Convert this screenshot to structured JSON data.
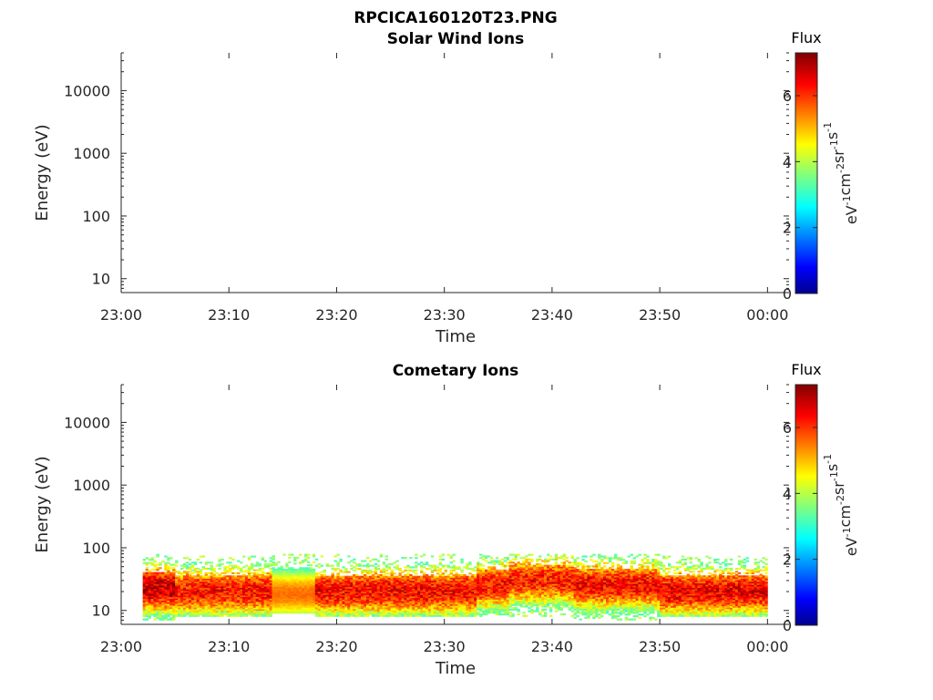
{
  "figure_title": "RPCICA160120T23.PNG",
  "chart_data": [
    {
      "type": "heatmap",
      "title": "Solar Wind Ions",
      "xlabel": "Time",
      "ylabel": "Energy (eV)",
      "x_ticks": [
        "23:00",
        "23:10",
        "23:20",
        "23:30",
        "23:40",
        "23:50",
        "00:00"
      ],
      "xlim": [
        "23:00",
        "00:02"
      ],
      "y_scale": "log",
      "y_ticks": [
        10,
        100,
        1000,
        10000
      ],
      "ylim": [
        6,
        40000
      ],
      "colorbar": {
        "title": "Flux",
        "label": "eV-1cm-2sr-1s-1",
        "ticks": [
          0,
          2,
          4,
          6
        ],
        "range": [
          0,
          7.3
        ],
        "colormap": "jet"
      },
      "populated": false,
      "bands": []
    },
    {
      "type": "heatmap",
      "title": "Cometary Ions",
      "xlabel": "Time",
      "ylabel": "Energy (eV)",
      "x_ticks": [
        "23:00",
        "23:10",
        "23:20",
        "23:30",
        "23:40",
        "23:50",
        "00:00"
      ],
      "xlim": [
        "23:00",
        "00:02"
      ],
      "y_scale": "log",
      "y_ticks": [
        10,
        100,
        1000,
        10000
      ],
      "ylim": [
        6,
        40000
      ],
      "colorbar": {
        "title": "Flux",
        "label": "eV-1cm-2sr-1s-1",
        "ticks": [
          0,
          2,
          4,
          6
        ],
        "range": [
          0,
          7.3
        ],
        "colormap": "jet"
      },
      "populated": true,
      "bands": [
        {
          "t_start": "23:02",
          "t_end": "23:05",
          "e_min": 7,
          "e_max": 80,
          "peak_energy": 22,
          "peak_flux": 6.8
        },
        {
          "t_start": "23:05",
          "t_end": "23:14",
          "e_min": 8,
          "e_max": 75,
          "peak_energy": 20,
          "peak_flux": 6.3
        },
        {
          "t_start": "23:14",
          "t_end": "23:18",
          "e_min": 9,
          "e_max": 80,
          "peak_energy": 18,
          "peak_flux": 5.6
        },
        {
          "t_start": "23:18",
          "t_end": "23:33",
          "e_min": 8,
          "e_max": 80,
          "peak_energy": 20,
          "peak_flux": 6.4
        },
        {
          "t_start": "23:33",
          "t_end": "23:36",
          "e_min": 8,
          "e_max": 80,
          "peak_energy": 25,
          "peak_flux": 6.3
        },
        {
          "t_start": "23:36",
          "t_end": "23:42",
          "e_min": 8,
          "e_max": 80,
          "peak_energy": 30,
          "peak_flux": 6.2
        },
        {
          "t_start": "23:42",
          "t_end": "23:50",
          "e_min": 7,
          "e_max": 80,
          "peak_energy": 25,
          "peak_flux": 6.4
        },
        {
          "t_start": "23:50",
          "t_end": "00:00",
          "e_min": 8,
          "e_max": 75,
          "peak_energy": 20,
          "peak_flux": 6.5
        }
      ]
    }
  ]
}
